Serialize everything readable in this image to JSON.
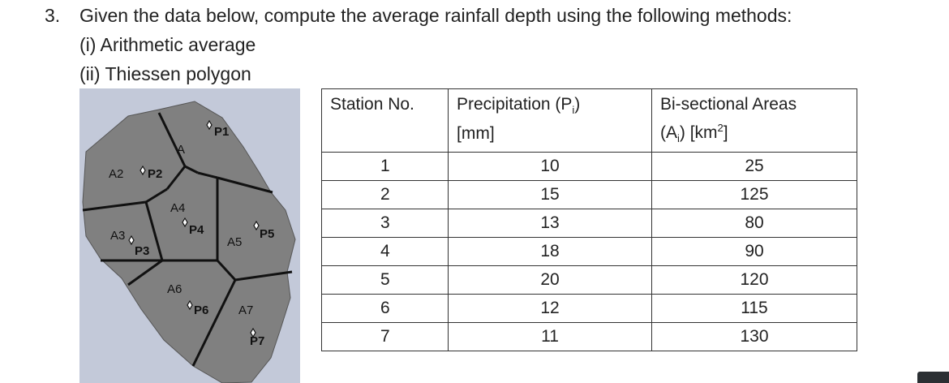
{
  "question": {
    "number": "3.",
    "text": "Given the data below, compute the average rainfall depth using the following methods:",
    "methods": [
      "(i) Arithmetic average",
      "(ii) Thiessen polygon"
    ]
  },
  "map": {
    "labels": {
      "a_top": "A",
      "a2": "A2",
      "p2": "P2",
      "p1": "P1",
      "a4": "A4",
      "p4": "P4",
      "a3": "A3",
      "p3": "P3",
      "a5": "A5",
      "p5": "P5",
      "a6": "A6",
      "p6": "P6",
      "a7": "A7",
      "p7": "P7"
    },
    "colors": {
      "background": "#c3c9d9",
      "land": "#808080",
      "outline": "#222222"
    }
  },
  "table": {
    "headers": {
      "station": "Station No.",
      "precip_line1": "Precipitation (P",
      "precip_sub": "i",
      "precip_line1_end": ")",
      "precip_line2": "[mm]",
      "area_line1": "Bi-sectional Areas",
      "area_line2_start": "(A",
      "area_sub": "i",
      "area_line2_mid": ") [km",
      "area_sup": "2",
      "area_line2_end": "]"
    },
    "rows": [
      {
        "station": "1",
        "precip": "10",
        "area": "25"
      },
      {
        "station": "2",
        "precip": "15",
        "area": "125"
      },
      {
        "station": "3",
        "precip": "13",
        "area": "80"
      },
      {
        "station": "4",
        "precip": "18",
        "area": "90"
      },
      {
        "station": "5",
        "precip": "20",
        "area": "120"
      },
      {
        "station": "6",
        "precip": "12",
        "area": "115"
      },
      {
        "station": "7",
        "precip": "11",
        "area": "130"
      }
    ]
  }
}
